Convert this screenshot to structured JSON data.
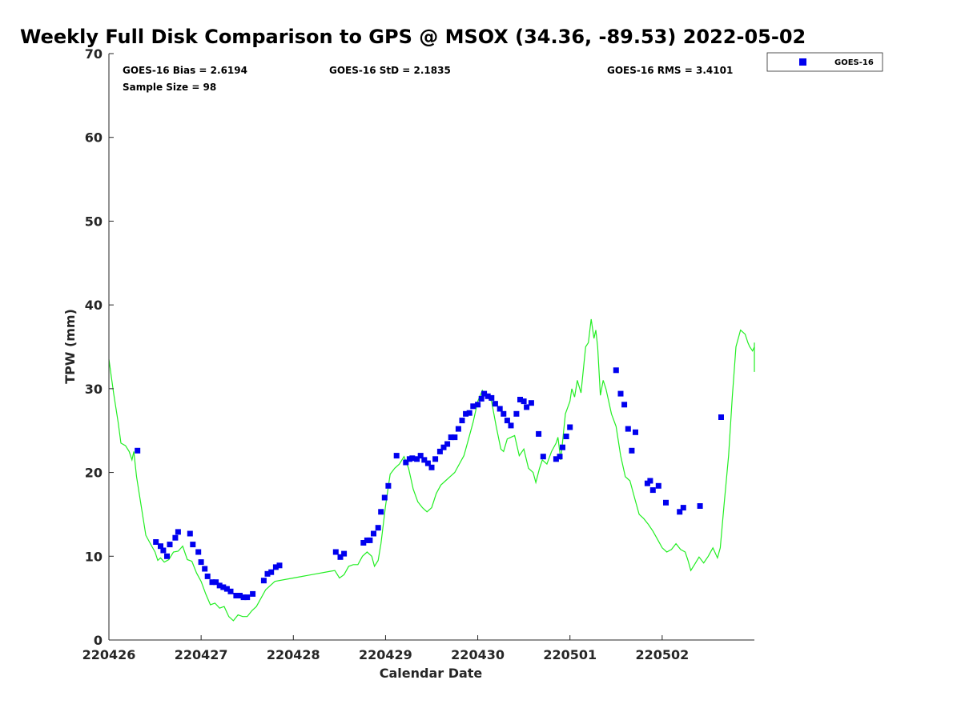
{
  "colors": {
    "series": "#0000ee",
    "reference_line": "#22ee22",
    "axis": "#262626"
  },
  "chart_data": {
    "type": "scatter",
    "title": "Weekly Full Disk Comparison to GPS @ MSOX (34.36, -89.53) 2022-05-02",
    "xlabel": "Calendar Date",
    "ylabel": "TPW (mm)",
    "xlim": [
      0,
      7
    ],
    "ylim": [
      0,
      70
    ],
    "yticks": [
      0,
      10,
      20,
      30,
      40,
      50,
      60,
      70
    ],
    "xtick_positions": [
      0,
      1,
      2,
      3,
      4,
      5,
      6
    ],
    "xtick_labels": [
      "220426",
      "220427",
      "220428",
      "220429",
      "220430",
      "220501",
      "220502"
    ],
    "x_unit": "days since 2022-04-26 00:00",
    "grid": false,
    "legend": {
      "position": "top-right",
      "entries": [
        "GOES-16"
      ]
    },
    "stats": {
      "bias": "GOES-16 Bias = 2.6194",
      "std": "GOES-16 StD = 2.1835",
      "rms": "GOES-16 RMS = 3.4101",
      "sample": "Sample Size = 98"
    },
    "series": [
      {
        "name": "GOES-16",
        "marker": "square",
        "points": [
          [
            0.31,
            22.6
          ],
          [
            0.51,
            11.7
          ],
          [
            0.56,
            11.2
          ],
          [
            0.59,
            10.7
          ],
          [
            0.63,
            10.0
          ],
          [
            0.66,
            11.4
          ],
          [
            0.72,
            12.2
          ],
          [
            0.75,
            12.9
          ],
          [
            0.88,
            12.7
          ],
          [
            0.91,
            11.4
          ],
          [
            0.97,
            10.5
          ],
          [
            1.0,
            9.3
          ],
          [
            1.04,
            8.5
          ],
          [
            1.07,
            7.6
          ],
          [
            1.12,
            6.9
          ],
          [
            1.16,
            6.9
          ],
          [
            1.2,
            6.5
          ],
          [
            1.24,
            6.3
          ],
          [
            1.28,
            6.1
          ],
          [
            1.32,
            5.8
          ],
          [
            1.38,
            5.3
          ],
          [
            1.42,
            5.3
          ],
          [
            1.46,
            5.1
          ],
          [
            1.5,
            5.1
          ],
          [
            1.56,
            5.5
          ],
          [
            1.68,
            7.1
          ],
          [
            1.72,
            7.9
          ],
          [
            1.76,
            8.1
          ],
          [
            1.81,
            8.7
          ],
          [
            1.85,
            8.9
          ],
          [
            2.46,
            10.5
          ],
          [
            2.51,
            9.9
          ],
          [
            2.55,
            10.3
          ],
          [
            2.76,
            11.6
          ],
          [
            2.8,
            11.9
          ],
          [
            2.83,
            11.9
          ],
          [
            2.87,
            12.7
          ],
          [
            2.92,
            13.4
          ],
          [
            2.95,
            15.3
          ],
          [
            2.99,
            17.0
          ],
          [
            3.03,
            18.4
          ],
          [
            3.12,
            22.0
          ],
          [
            3.22,
            21.2
          ],
          [
            3.26,
            21.6
          ],
          [
            3.29,
            21.7
          ],
          [
            3.34,
            21.6
          ],
          [
            3.38,
            22.0
          ],
          [
            3.42,
            21.5
          ],
          [
            3.46,
            21.1
          ],
          [
            3.5,
            20.6
          ],
          [
            3.54,
            21.6
          ],
          [
            3.59,
            22.5
          ],
          [
            3.63,
            23.0
          ],
          [
            3.67,
            23.4
          ],
          [
            3.71,
            24.2
          ],
          [
            3.75,
            24.2
          ],
          [
            3.79,
            25.2
          ],
          [
            3.83,
            26.2
          ],
          [
            3.87,
            27.0
          ],
          [
            3.91,
            27.1
          ],
          [
            3.95,
            27.9
          ],
          [
            4.0,
            28.1
          ],
          [
            4.04,
            28.8
          ],
          [
            4.07,
            29.4
          ],
          [
            4.11,
            29.1
          ],
          [
            4.15,
            28.9
          ],
          [
            4.19,
            28.2
          ],
          [
            4.24,
            27.6
          ],
          [
            4.28,
            27.0
          ],
          [
            4.32,
            26.2
          ],
          [
            4.36,
            25.6
          ],
          [
            4.42,
            27.0
          ],
          [
            4.46,
            28.7
          ],
          [
            4.5,
            28.5
          ],
          [
            4.53,
            27.8
          ],
          [
            4.58,
            28.3
          ],
          [
            4.66,
            24.6
          ],
          [
            4.71,
            21.9
          ],
          [
            4.85,
            21.6
          ],
          [
            4.89,
            21.9
          ],
          [
            4.92,
            23.0
          ],
          [
            4.96,
            24.3
          ],
          [
            5.0,
            25.4
          ],
          [
            5.5,
            32.2
          ],
          [
            5.55,
            29.4
          ],
          [
            5.59,
            28.1
          ],
          [
            5.63,
            25.2
          ],
          [
            5.67,
            22.6
          ],
          [
            5.71,
            24.8
          ],
          [
            5.84,
            18.7
          ],
          [
            5.87,
            19.0
          ],
          [
            5.9,
            17.9
          ],
          [
            5.96,
            18.4
          ],
          [
            6.04,
            16.4
          ],
          [
            6.19,
            15.3
          ],
          [
            6.23,
            15.8
          ],
          [
            6.41,
            16.0
          ],
          [
            6.64,
            26.6
          ]
        ]
      },
      {
        "name": "",
        "style": "line",
        "points": [
          [
            0.0,
            33.5
          ],
          [
            0.05,
            29.5
          ],
          [
            0.1,
            26.0
          ],
          [
            0.13,
            23.5
          ],
          [
            0.18,
            23.2
          ],
          [
            0.22,
            22.5
          ],
          [
            0.25,
            21.5
          ],
          [
            0.27,
            22.5
          ],
          [
            0.3,
            19.5
          ],
          [
            0.35,
            16.0
          ],
          [
            0.4,
            12.5
          ],
          [
            0.45,
            11.5
          ],
          [
            0.5,
            10.5
          ],
          [
            0.53,
            9.5
          ],
          [
            0.56,
            9.8
          ],
          [
            0.6,
            9.3
          ],
          [
            0.65,
            9.6
          ],
          [
            0.7,
            10.5
          ],
          [
            0.75,
            10.6
          ],
          [
            0.8,
            11.2
          ],
          [
            0.85,
            9.6
          ],
          [
            0.9,
            9.4
          ],
          [
            0.95,
            8.0
          ],
          [
            1.0,
            7.0
          ],
          [
            1.05,
            5.5
          ],
          [
            1.1,
            4.2
          ],
          [
            1.15,
            4.4
          ],
          [
            1.2,
            3.8
          ],
          [
            1.25,
            4.0
          ],
          [
            1.3,
            2.8
          ],
          [
            1.35,
            2.3
          ],
          [
            1.4,
            3.0
          ],
          [
            1.45,
            2.8
          ],
          [
            1.5,
            2.8
          ],
          [
            1.55,
            3.5
          ],
          [
            1.6,
            4.0
          ],
          [
            1.65,
            5.0
          ],
          [
            1.7,
            6.0
          ],
          [
            1.75,
            6.5
          ],
          [
            1.8,
            7.0
          ],
          [
            2.0,
            7.4
          ],
          [
            2.2,
            7.8
          ],
          [
            2.4,
            8.2
          ],
          [
            2.45,
            8.3
          ],
          [
            2.5,
            7.4
          ],
          [
            2.55,
            7.8
          ],
          [
            2.6,
            8.8
          ],
          [
            2.65,
            9.0
          ],
          [
            2.7,
            9.0
          ],
          [
            2.75,
            10.0
          ],
          [
            2.8,
            10.5
          ],
          [
            2.85,
            10.0
          ],
          [
            2.88,
            8.8
          ],
          [
            2.92,
            9.5
          ],
          [
            2.95,
            11.5
          ],
          [
            3.0,
            16.0
          ],
          [
            3.05,
            19.8
          ],
          [
            3.1,
            20.5
          ],
          [
            3.15,
            21.0
          ],
          [
            3.2,
            21.9
          ],
          [
            3.25,
            20.5
          ],
          [
            3.3,
            18.0
          ],
          [
            3.35,
            16.5
          ],
          [
            3.4,
            15.8
          ],
          [
            3.45,
            15.3
          ],
          [
            3.5,
            15.8
          ],
          [
            3.55,
            17.5
          ],
          [
            3.6,
            18.5
          ],
          [
            3.65,
            19.0
          ],
          [
            3.7,
            19.5
          ],
          [
            3.75,
            20.0
          ],
          [
            3.8,
            21.0
          ],
          [
            3.85,
            22.0
          ],
          [
            3.9,
            24.0
          ],
          [
            3.95,
            26.0
          ],
          [
            4.0,
            28.5
          ],
          [
            4.05,
            29.8
          ],
          [
            4.1,
            29.0
          ],
          [
            4.15,
            28.5
          ],
          [
            4.2,
            25.5
          ],
          [
            4.25,
            22.8
          ],
          [
            4.28,
            22.5
          ],
          [
            4.32,
            24.0
          ],
          [
            4.36,
            24.2
          ],
          [
            4.4,
            24.4
          ],
          [
            4.45,
            22.0
          ],
          [
            4.5,
            22.8
          ],
          [
            4.55,
            20.5
          ],
          [
            4.6,
            20.0
          ],
          [
            4.63,
            18.8
          ],
          [
            4.67,
            20.5
          ],
          [
            4.7,
            21.5
          ],
          [
            4.75,
            21.0
          ],
          [
            4.8,
            22.5
          ],
          [
            4.85,
            23.5
          ],
          [
            4.87,
            24.2
          ],
          [
            4.9,
            21.5
          ],
          [
            4.95,
            27.0
          ],
          [
            5.0,
            28.5
          ],
          [
            5.02,
            30.0
          ],
          [
            5.05,
            29.0
          ],
          [
            5.08,
            31.0
          ],
          [
            5.12,
            29.5
          ],
          [
            5.17,
            35.0
          ],
          [
            5.2,
            35.5
          ],
          [
            5.23,
            38.3
          ],
          [
            5.26,
            36.0
          ],
          [
            5.28,
            37.0
          ],
          [
            5.3,
            35.0
          ],
          [
            5.33,
            29.2
          ],
          [
            5.36,
            31.0
          ],
          [
            5.39,
            30.0
          ],
          [
            5.42,
            28.5
          ],
          [
            5.45,
            27.0
          ],
          [
            5.5,
            25.5
          ],
          [
            5.55,
            22.0
          ],
          [
            5.6,
            19.5
          ],
          [
            5.65,
            19.0
          ],
          [
            5.7,
            17.0
          ],
          [
            5.75,
            15.0
          ],
          [
            5.8,
            14.5
          ],
          [
            5.85,
            13.8
          ],
          [
            5.9,
            13.0
          ],
          [
            5.95,
            12.0
          ],
          [
            6.0,
            11.0
          ],
          [
            6.05,
            10.5
          ],
          [
            6.1,
            10.8
          ],
          [
            6.15,
            11.5
          ],
          [
            6.2,
            10.8
          ],
          [
            6.25,
            10.5
          ],
          [
            6.28,
            9.5
          ],
          [
            6.31,
            8.3
          ],
          [
            6.35,
            9.0
          ],
          [
            6.4,
            9.9
          ],
          [
            6.45,
            9.2
          ],
          [
            6.5,
            10.0
          ],
          [
            6.55,
            11.0
          ],
          [
            6.6,
            9.8
          ],
          [
            6.63,
            11.0
          ],
          [
            6.67,
            16.0
          ],
          [
            6.72,
            22.0
          ],
          [
            6.76,
            29.0
          ],
          [
            6.8,
            35.0
          ],
          [
            6.85,
            37.0
          ],
          [
            6.9,
            36.5
          ],
          [
            6.93,
            35.5
          ],
          [
            6.95,
            35.0
          ],
          [
            6.98,
            34.5
          ],
          [
            7.0,
            35.0
          ],
          [
            7.03,
            35.5
          ],
          [
            7.06,
            33.0
          ],
          [
            7.09,
            32.0
          ],
          [
            7.12,
            32.0
          ]
        ]
      }
    ]
  }
}
